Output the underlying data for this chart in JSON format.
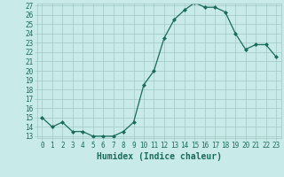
{
  "xlabel": "Humidex (Indice chaleur)",
  "x": [
    0,
    1,
    2,
    3,
    4,
    5,
    6,
    7,
    8,
    9,
    10,
    11,
    12,
    13,
    14,
    15,
    16,
    17,
    18,
    19,
    20,
    21,
    22,
    23
  ],
  "y": [
    15,
    14,
    14.5,
    13.5,
    13.5,
    13,
    13,
    13,
    13.5,
    14.5,
    18.5,
    20,
    23.5,
    25.5,
    26.5,
    27.3,
    26.8,
    26.8,
    26.3,
    24,
    22.3,
    22.8,
    22.8,
    21.5
  ],
  "line_color": "#1a6b5a",
  "marker": "D",
  "marker_size": 2,
  "bg_color": "#c8eae8",
  "grid_color": "#a0c8c4",
  "ylim_min": 13,
  "ylim_max": 27,
  "xlim_min": -0.5,
  "xlim_max": 23.5,
  "yticks": [
    13,
    14,
    15,
    16,
    17,
    18,
    19,
    20,
    21,
    22,
    23,
    24,
    25,
    26,
    27
  ],
  "xticks": [
    0,
    1,
    2,
    3,
    4,
    5,
    6,
    7,
    8,
    9,
    10,
    11,
    12,
    13,
    14,
    15,
    16,
    17,
    18,
    19,
    20,
    21,
    22,
    23
  ],
  "tick_fontsize": 5.5,
  "xlabel_fontsize": 7,
  "label_color": "#1a6b5a",
  "linewidth": 0.9
}
